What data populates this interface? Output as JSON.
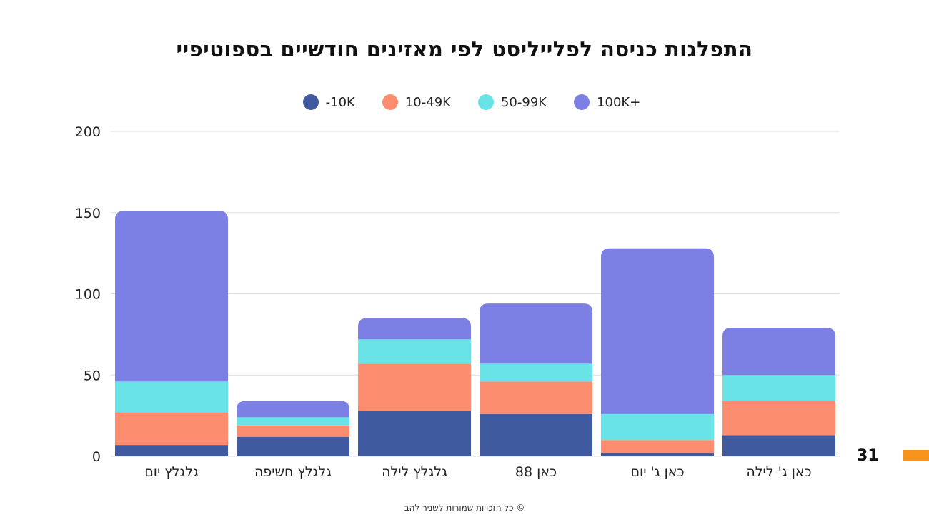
{
  "slide": {
    "page_number": "31",
    "accent_color": "#f7931e",
    "footer": "© כל הזכויות שמורות לשניר להב"
  },
  "chart_data": {
    "type": "bar",
    "stacked": true,
    "title": "התפלגות כניסה לפלייליסט לפי מאזינים חודשיים בספוטיפיי",
    "xlabel": "",
    "ylabel": "",
    "ylim": [
      0,
      200
    ],
    "yticks": [
      0,
      50,
      100,
      150,
      200
    ],
    "grid": true,
    "legend_position": "top-center",
    "categories": [
      "גלגלץ יום",
      "גלגלץ חשיפה",
      "גלגלץ לילה",
      "כאן 88",
      "כאן ג' יום",
      "כאן ג' לילה"
    ],
    "series": [
      {
        "name": "-10K",
        "color": "#3f5a9e",
        "values": [
          7,
          12,
          28,
          26,
          2,
          13
        ]
      },
      {
        "name": "10-49K",
        "color": "#fd8d6f",
        "values": [
          20,
          7,
          29,
          20,
          8,
          21
        ]
      },
      {
        "name": "50-99K",
        "color": "#6ae3e6",
        "values": [
          19,
          5,
          15,
          11,
          16,
          16
        ]
      },
      {
        "name": "100K+",
        "color": "#7c7fe4",
        "values": [
          105,
          10,
          13,
          37,
          102,
          29
        ]
      }
    ]
  }
}
